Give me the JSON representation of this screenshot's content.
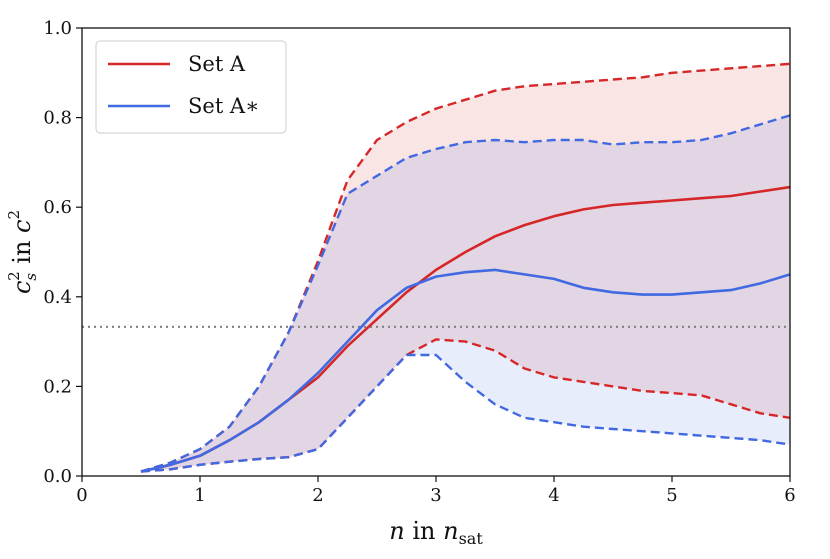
{
  "chart_data": {
    "type": "line",
    "title": "",
    "xlabel": "n in n_sat",
    "ylabel": "c_s^2 in c^2",
    "xlim": [
      0,
      6
    ],
    "ylim": [
      0,
      1
    ],
    "xticks": [
      "0",
      "1",
      "2",
      "3",
      "4",
      "5",
      "6"
    ],
    "yticks": [
      "0.0",
      "0.2",
      "0.4",
      "0.6",
      "0.8",
      "1.0"
    ],
    "reference_line": {
      "y": 0.333,
      "style": "dotted",
      "color": "#808080"
    },
    "legend": {
      "position": "top-left",
      "entries": [
        "Set A",
        "Set A∗"
      ]
    },
    "series": [
      {
        "name": "Set A",
        "color": "#d62728",
        "x": [
          0.5,
          0.75,
          1.0,
          1.25,
          1.5,
          1.75,
          2.0,
          2.25,
          2.5,
          2.75,
          3.0,
          3.25,
          3.5,
          3.75,
          4.0,
          4.25,
          4.5,
          4.75,
          5.0,
          5.25,
          5.5,
          5.75,
          6.0
        ],
        "median": [
          0.01,
          0.025,
          0.045,
          0.08,
          0.12,
          0.17,
          0.22,
          0.29,
          0.35,
          0.41,
          0.46,
          0.5,
          0.535,
          0.56,
          0.58,
          0.595,
          0.605,
          0.61,
          0.615,
          0.62,
          0.625,
          0.635,
          0.645
        ],
        "upper": [
          0.01,
          0.03,
          0.06,
          0.11,
          0.2,
          0.32,
          0.48,
          0.66,
          0.75,
          0.79,
          0.82,
          0.84,
          0.86,
          0.87,
          0.875,
          0.88,
          0.885,
          0.89,
          0.9,
          0.905,
          0.91,
          0.915,
          0.92
        ],
        "lower": [
          0.01,
          0.015,
          0.025,
          0.032,
          0.038,
          0.042,
          0.06,
          0.13,
          0.2,
          0.27,
          0.305,
          0.3,
          0.28,
          0.24,
          0.22,
          0.21,
          0.2,
          0.19,
          0.185,
          0.18,
          0.16,
          0.14,
          0.13
        ]
      },
      {
        "name": "Set A∗",
        "color": "#4169e1",
        "x": [
          0.5,
          0.75,
          1.0,
          1.25,
          1.5,
          1.75,
          2.0,
          2.25,
          2.5,
          2.75,
          3.0,
          3.25,
          3.5,
          3.75,
          4.0,
          4.25,
          4.5,
          4.75,
          5.0,
          5.25,
          5.5,
          5.75,
          6.0
        ],
        "median": [
          0.01,
          0.025,
          0.045,
          0.08,
          0.12,
          0.17,
          0.23,
          0.3,
          0.37,
          0.42,
          0.445,
          0.455,
          0.46,
          0.45,
          0.44,
          0.42,
          0.41,
          0.405,
          0.405,
          0.41,
          0.415,
          0.43,
          0.45
        ],
        "upper": [
          0.01,
          0.03,
          0.06,
          0.11,
          0.2,
          0.32,
          0.47,
          0.63,
          0.67,
          0.71,
          0.73,
          0.745,
          0.75,
          0.745,
          0.75,
          0.75,
          0.74,
          0.745,
          0.745,
          0.75,
          0.765,
          0.785,
          0.805
        ],
        "lower": [
          0.01,
          0.015,
          0.025,
          0.032,
          0.038,
          0.042,
          0.06,
          0.13,
          0.2,
          0.27,
          0.27,
          0.21,
          0.16,
          0.13,
          0.12,
          0.11,
          0.105,
          0.1,
          0.095,
          0.09,
          0.085,
          0.08,
          0.07
        ]
      }
    ]
  }
}
